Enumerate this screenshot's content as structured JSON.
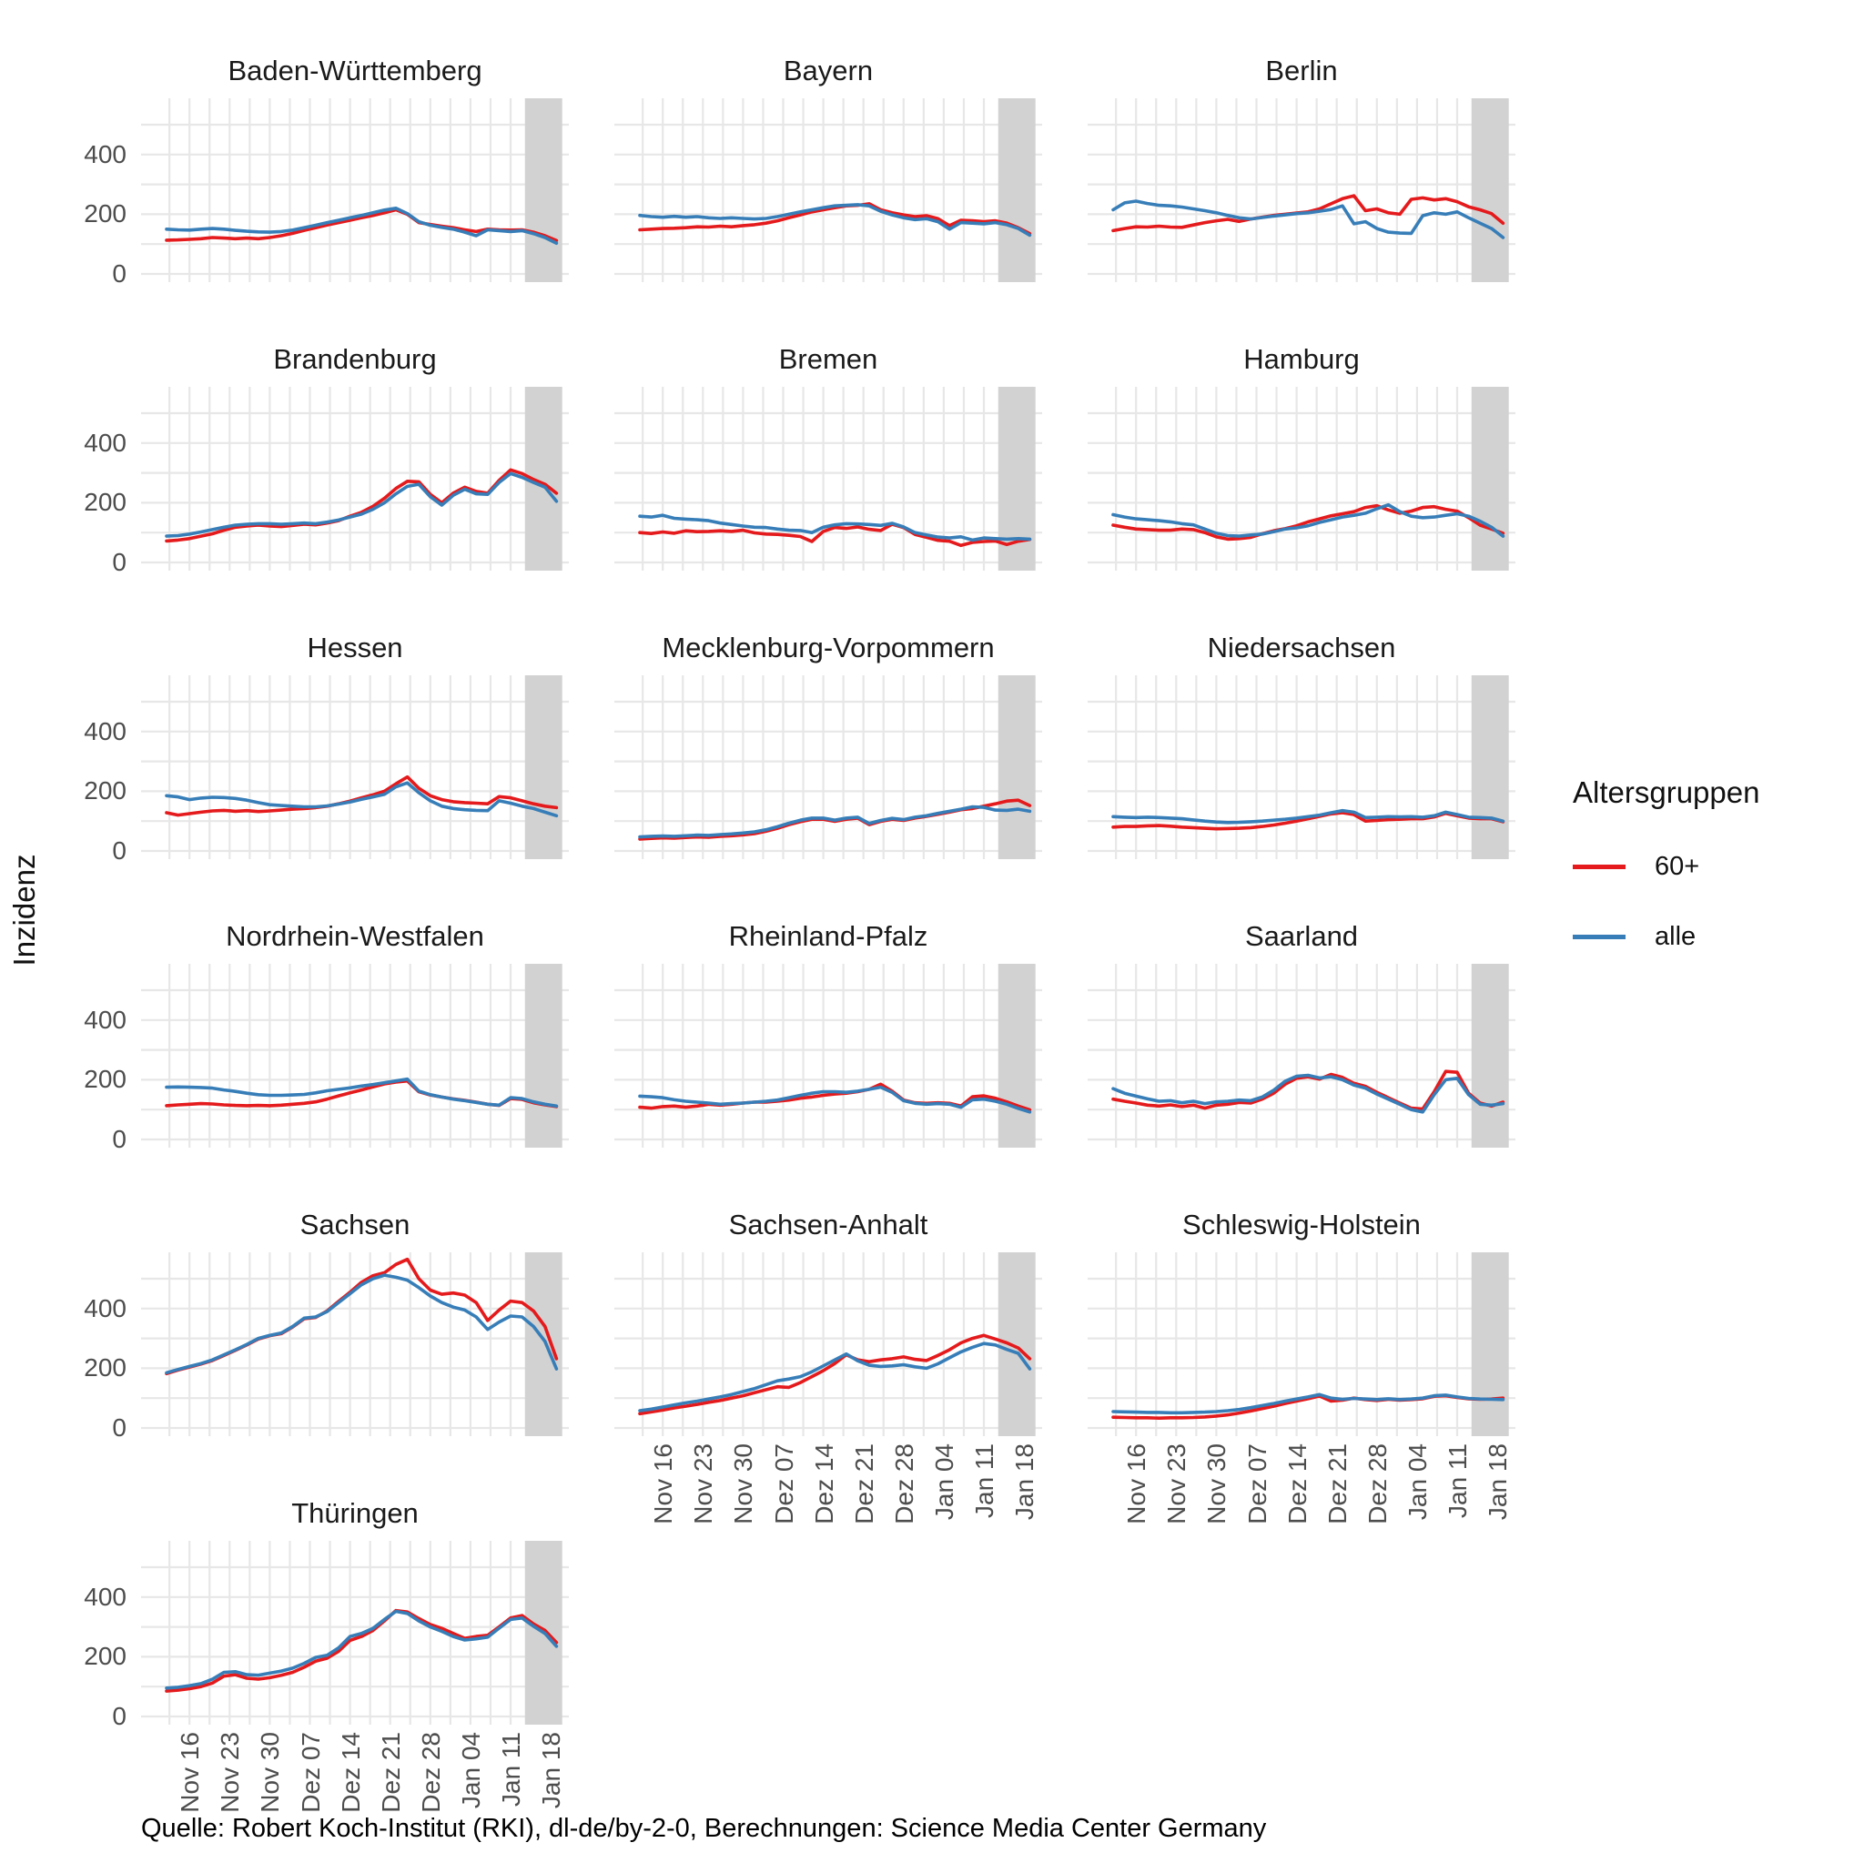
{
  "figure": {
    "ylabel": "Inzidenz",
    "source": "Quelle: Robert Koch-Institut (RKI), dl-de/by-2-0, Berechnungen: Science Media Center Germany",
    "legend": {
      "title": "Altersgruppen",
      "items": [
        {
          "label": "60+",
          "color": "#e41a1c"
        },
        {
          "label": "alle",
          "color": "#377eb8"
        }
      ]
    }
  },
  "chart_data": {
    "type": "line",
    "title": "",
    "xlabel": "",
    "ylabel": "Inzidenz",
    "ylim": [
      0,
      590
    ],
    "y_ticks": [
      "0",
      "200",
      "400"
    ],
    "y_tick_values": [
      0,
      200,
      400
    ],
    "y_minor_values": [
      100,
      300,
      500
    ],
    "x_tick_labels": [
      "Nov 16",
      "Nov 23",
      "Nov 30",
      "Dez 07",
      "Dez 14",
      "Dez 21",
      "Dez 28",
      "Jan 04",
      "Jan 11",
      "Jan 18"
    ],
    "x_tick_days": [
      4,
      11,
      18,
      25,
      32,
      39,
      46,
      53,
      60,
      67
    ],
    "x_day_range": [
      0,
      69
    ],
    "sample_day_step": 2,
    "shaded_band_days": [
      62.5,
      69
    ],
    "grid": true,
    "legend_position": "right",
    "series_names": {
      "r": "60+",
      "b": "alle"
    },
    "colors": {
      "r": "#e41a1c",
      "b": "#377eb8",
      "band": "#d2d2d2",
      "grid": "#e7e7e7"
    },
    "facets": [
      {
        "title": "Baden-Württemberg",
        "r": [
          113,
          114,
          116,
          118,
          122,
          120,
          118,
          120,
          118,
          122,
          128,
          136,
          146,
          155,
          164,
          172,
          180,
          188,
          196,
          205,
          215,
          200,
          172,
          166,
          160,
          155,
          148,
          142,
          150,
          148,
          147,
          148,
          140,
          128,
          112
        ],
        "b": [
          150,
          148,
          147,
          150,
          152,
          150,
          146,
          143,
          141,
          140,
          142,
          147,
          155,
          163,
          172,
          180,
          188,
          196,
          205,
          214,
          220,
          202,
          175,
          163,
          156,
          150,
          140,
          128,
          148,
          145,
          142,
          145,
          135,
          122,
          103
        ]
      },
      {
        "title": "Bayern",
        "r": [
          148,
          150,
          152,
          153,
          155,
          158,
          157,
          160,
          158,
          162,
          165,
          170,
          178,
          188,
          198,
          208,
          215,
          222,
          228,
          230,
          235,
          215,
          205,
          198,
          192,
          195,
          185,
          162,
          180,
          178,
          175,
          178,
          170,
          155,
          135
        ],
        "b": [
          196,
          192,
          190,
          193,
          190,
          192,
          188,
          186,
          188,
          186,
          184,
          186,
          192,
          200,
          208,
          215,
          222,
          228,
          230,
          232,
          228,
          210,
          198,
          188,
          182,
          185,
          175,
          150,
          172,
          170,
          168,
          172,
          165,
          152,
          130
        ]
      },
      {
        "title": "Berlin",
        "r": [
          145,
          152,
          158,
          157,
          160,
          157,
          156,
          164,
          172,
          178,
          183,
          176,
          184,
          190,
          196,
          200,
          204,
          208,
          218,
          235,
          252,
          262,
          212,
          218,
          205,
          200,
          250,
          255,
          248,
          252,
          242,
          225,
          215,
          202,
          170
        ],
        "b": [
          215,
          238,
          244,
          236,
          230,
          228,
          224,
          218,
          212,
          205,
          196,
          188,
          184,
          189,
          194,
          198,
          202,
          205,
          210,
          216,
          228,
          168,
          175,
          152,
          140,
          137,
          136,
          195,
          205,
          200,
          208,
          188,
          170,
          152,
          122
        ]
      },
      {
        "title": "Brandenburg",
        "r": [
          72,
          75,
          80,
          88,
          96,
          108,
          118,
          122,
          125,
          122,
          120,
          124,
          128,
          126,
          132,
          140,
          155,
          168,
          188,
          215,
          248,
          272,
          270,
          228,
          200,
          232,
          252,
          238,
          232,
          275,
          310,
          298,
          278,
          262,
          232
        ],
        "b": [
          88,
          90,
          95,
          102,
          110,
          118,
          125,
          128,
          130,
          130,
          128,
          130,
          132,
          130,
          135,
          142,
          152,
          162,
          178,
          200,
          230,
          255,
          262,
          220,
          192,
          225,
          245,
          230,
          228,
          268,
          298,
          285,
          268,
          252,
          205
        ]
      },
      {
        "title": "Bremen",
        "r": [
          100,
          97,
          102,
          98,
          106,
          103,
          104,
          106,
          104,
          108,
          99,
          95,
          94,
          91,
          87,
          70,
          104,
          117,
          114,
          119,
          111,
          107,
          128,
          117,
          94,
          84,
          74,
          71,
          57,
          67,
          70,
          72,
          60,
          71,
          77
        ],
        "b": [
          155,
          152,
          158,
          148,
          145,
          143,
          140,
          132,
          127,
          122,
          118,
          117,
          112,
          108,
          107,
          100,
          118,
          126,
          130,
          129,
          127,
          124,
          131,
          119,
          100,
          92,
          85,
          82,
          86,
          75,
          82,
          80,
          78,
          80,
          78
        ]
      },
      {
        "title": "Hamburg",
        "r": [
          125,
          118,
          112,
          110,
          108,
          108,
          112,
          110,
          100,
          86,
          78,
          80,
          84,
          96,
          106,
          113,
          123,
          136,
          146,
          156,
          163,
          170,
          184,
          190,
          176,
          165,
          172,
          184,
          187,
          178,
          172,
          150,
          125,
          112,
          98
        ],
        "b": [
          160,
          152,
          146,
          143,
          140,
          136,
          130,
          126,
          112,
          98,
          90,
          88,
          92,
          95,
          103,
          112,
          116,
          123,
          134,
          143,
          152,
          158,
          165,
          180,
          193,
          170,
          155,
          150,
          152,
          158,
          163,
          155,
          138,
          118,
          88
        ]
      },
      {
        "title": "Hessen",
        "r": [
          128,
          120,
          125,
          130,
          134,
          136,
          133,
          135,
          132,
          134,
          137,
          140,
          142,
          145,
          150,
          158,
          167,
          178,
          188,
          200,
          225,
          248,
          210,
          185,
          172,
          165,
          162,
          160,
          158,
          182,
          178,
          168,
          158,
          150,
          145
        ],
        "b": [
          185,
          181,
          172,
          177,
          180,
          179,
          176,
          170,
          162,
          155,
          152,
          150,
          148,
          148,
          151,
          157,
          164,
          173,
          181,
          190,
          215,
          228,
          195,
          168,
          150,
          142,
          138,
          136,
          135,
          168,
          160,
          150,
          142,
          130,
          118
        ]
      },
      {
        "title": "Mecklenburg-Vorpommern",
        "r": [
          40,
          42,
          44,
          43,
          45,
          47,
          46,
          49,
          51,
          54,
          58,
          66,
          76,
          88,
          98,
          106,
          106,
          99,
          106,
          110,
          88,
          99,
          106,
          102,
          110,
          116,
          123,
          130,
          138,
          142,
          150,
          158,
          167,
          170,
          152
        ],
        "b": [
          47,
          49,
          50,
          49,
          51,
          53,
          52,
          55,
          57,
          60,
          64,
          71,
          81,
          93,
          103,
          110,
          110,
          103,
          110,
          113,
          92,
          102,
          109,
          105,
          113,
          118,
          126,
          133,
          140,
          148,
          146,
          137,
          136,
          140,
          133
        ]
      },
      {
        "title": "Niedersachsen",
        "r": [
          80,
          82,
          82,
          84,
          85,
          83,
          80,
          78,
          76,
          74,
          75,
          76,
          78,
          82,
          87,
          93,
          100,
          108,
          116,
          124,
          128,
          122,
          100,
          102,
          105,
          106,
          108,
          108,
          114,
          126,
          118,
          110,
          108,
          108,
          98
        ],
        "b": [
          115,
          113,
          112,
          113,
          112,
          110,
          108,
          104,
          100,
          97,
          95,
          96,
          98,
          100,
          103,
          106,
          110,
          115,
          120,
          128,
          135,
          130,
          112,
          113,
          115,
          114,
          115,
          113,
          118,
          130,
          122,
          113,
          112,
          110,
          100
        ]
      },
      {
        "title": "Nordrhein-Westfalen",
        "r": [
          113,
          116,
          118,
          120,
          119,
          116,
          114,
          113,
          114,
          113,
          115,
          118,
          121,
          126,
          135,
          146,
          156,
          166,
          176,
          186,
          192,
          196,
          160,
          149,
          142,
          136,
          131,
          125,
          118,
          114,
          137,
          134,
          123,
          116,
          110
        ],
        "b": [
          175,
          176,
          175,
          174,
          172,
          166,
          161,
          155,
          150,
          148,
          148,
          149,
          151,
          156,
          163,
          168,
          173,
          179,
          184,
          190,
          196,
          202,
          162,
          150,
          142,
          135,
          130,
          124,
          118,
          115,
          140,
          137,
          126,
          118,
          112
        ]
      },
      {
        "title": "Rheinland-Pfalz",
        "r": [
          108,
          105,
          110,
          112,
          108,
          112,
          118,
          115,
          118,
          122,
          125,
          125,
          128,
          132,
          138,
          142,
          148,
          152,
          155,
          160,
          168,
          185,
          162,
          132,
          123,
          121,
          123,
          121,
          112,
          143,
          146,
          138,
          126,
          112,
          99
        ],
        "b": [
          145,
          143,
          140,
          133,
          128,
          125,
          122,
          118,
          120,
          122,
          125,
          128,
          132,
          140,
          148,
          155,
          160,
          160,
          158,
          162,
          168,
          175,
          158,
          130,
          121,
          118,
          120,
          118,
          108,
          133,
          135,
          128,
          118,
          104,
          92
        ]
      },
      {
        "title": "Saarland",
        "r": [
          135,
          128,
          122,
          115,
          112,
          116,
          110,
          115,
          105,
          115,
          118,
          124,
          122,
          135,
          155,
          185,
          205,
          210,
          202,
          218,
          208,
          188,
          178,
          158,
          140,
          122,
          105,
          102,
          160,
          228,
          225,
          155,
          122,
          112,
          125
        ],
        "b": [
          170,
          155,
          145,
          136,
          128,
          130,
          123,
          128,
          120,
          126,
          128,
          132,
          130,
          142,
          165,
          195,
          212,
          215,
          206,
          210,
          200,
          182,
          172,
          152,
          135,
          118,
          100,
          92,
          150,
          200,
          205,
          150,
          118,
          115,
          120
        ]
      },
      {
        "title": "Sachsen",
        "r": [
          182,
          194,
          204,
          214,
          226,
          243,
          260,
          278,
          298,
          309,
          316,
          338,
          366,
          370,
          392,
          424,
          455,
          488,
          510,
          520,
          548,
          565,
          500,
          462,
          448,
          452,
          445,
          420,
          360,
          395,
          425,
          420,
          392,
          340,
          232
        ],
        "b": [
          185,
          196,
          206,
          216,
          228,
          245,
          262,
          280,
          300,
          310,
          318,
          340,
          368,
          372,
          390,
          420,
          450,
          480,
          500,
          512,
          505,
          495,
          470,
          442,
          420,
          405,
          395,
          372,
          330,
          355,
          375,
          372,
          340,
          290,
          198
        ]
      },
      {
        "title": "Sachsen-Anhalt",
        "r": [
          48,
          54,
          60,
          67,
          73,
          79,
          86,
          92,
          100,
          108,
          118,
          128,
          138,
          136,
          152,
          172,
          192,
          216,
          245,
          228,
          222,
          228,
          232,
          238,
          230,
          226,
          243,
          262,
          285,
          300,
          310,
          298,
          285,
          268,
          232
        ],
        "b": [
          58,
          63,
          70,
          77,
          84,
          90,
          97,
          104,
          112,
          122,
          132,
          145,
          158,
          164,
          172,
          188,
          208,
          228,
          248,
          225,
          210,
          206,
          208,
          212,
          205,
          200,
          215,
          235,
          255,
          270,
          283,
          278,
          263,
          250,
          198
        ]
      },
      {
        "title": "Schleswig-Holstein",
        "r": [
          36,
          35,
          34,
          34,
          33,
          34,
          34,
          35,
          37,
          40,
          44,
          50,
          57,
          65,
          73,
          82,
          90,
          98,
          107,
          90,
          93,
          100,
          95,
          92,
          96,
          93,
          95,
          98,
          106,
          108,
          102,
          98,
          96,
          97,
          100
        ],
        "b": [
          55,
          54,
          53,
          52,
          52,
          51,
          51,
          52,
          53,
          55,
          58,
          62,
          68,
          75,
          82,
          90,
          97,
          104,
          112,
          100,
          96,
          99,
          97,
          95,
          98,
          95,
          97,
          100,
          108,
          110,
          104,
          99,
          97,
          96,
          95
        ]
      },
      {
        "title": "Thüringen",
        "r": [
          85,
          88,
          93,
          100,
          112,
          135,
          140,
          128,
          125,
          130,
          138,
          148,
          165,
          185,
          195,
          218,
          255,
          268,
          288,
          320,
          355,
          350,
          328,
          308,
          295,
          278,
          262,
          268,
          272,
          300,
          330,
          338,
          310,
          288,
          248
        ],
        "b": [
          95,
          98,
          103,
          110,
          125,
          148,
          150,
          140,
          138,
          145,
          152,
          162,
          178,
          198,
          205,
          230,
          268,
          278,
          295,
          325,
          352,
          345,
          320,
          300,
          285,
          268,
          256,
          260,
          266,
          296,
          325,
          330,
          302,
          278,
          235
        ]
      }
    ]
  }
}
